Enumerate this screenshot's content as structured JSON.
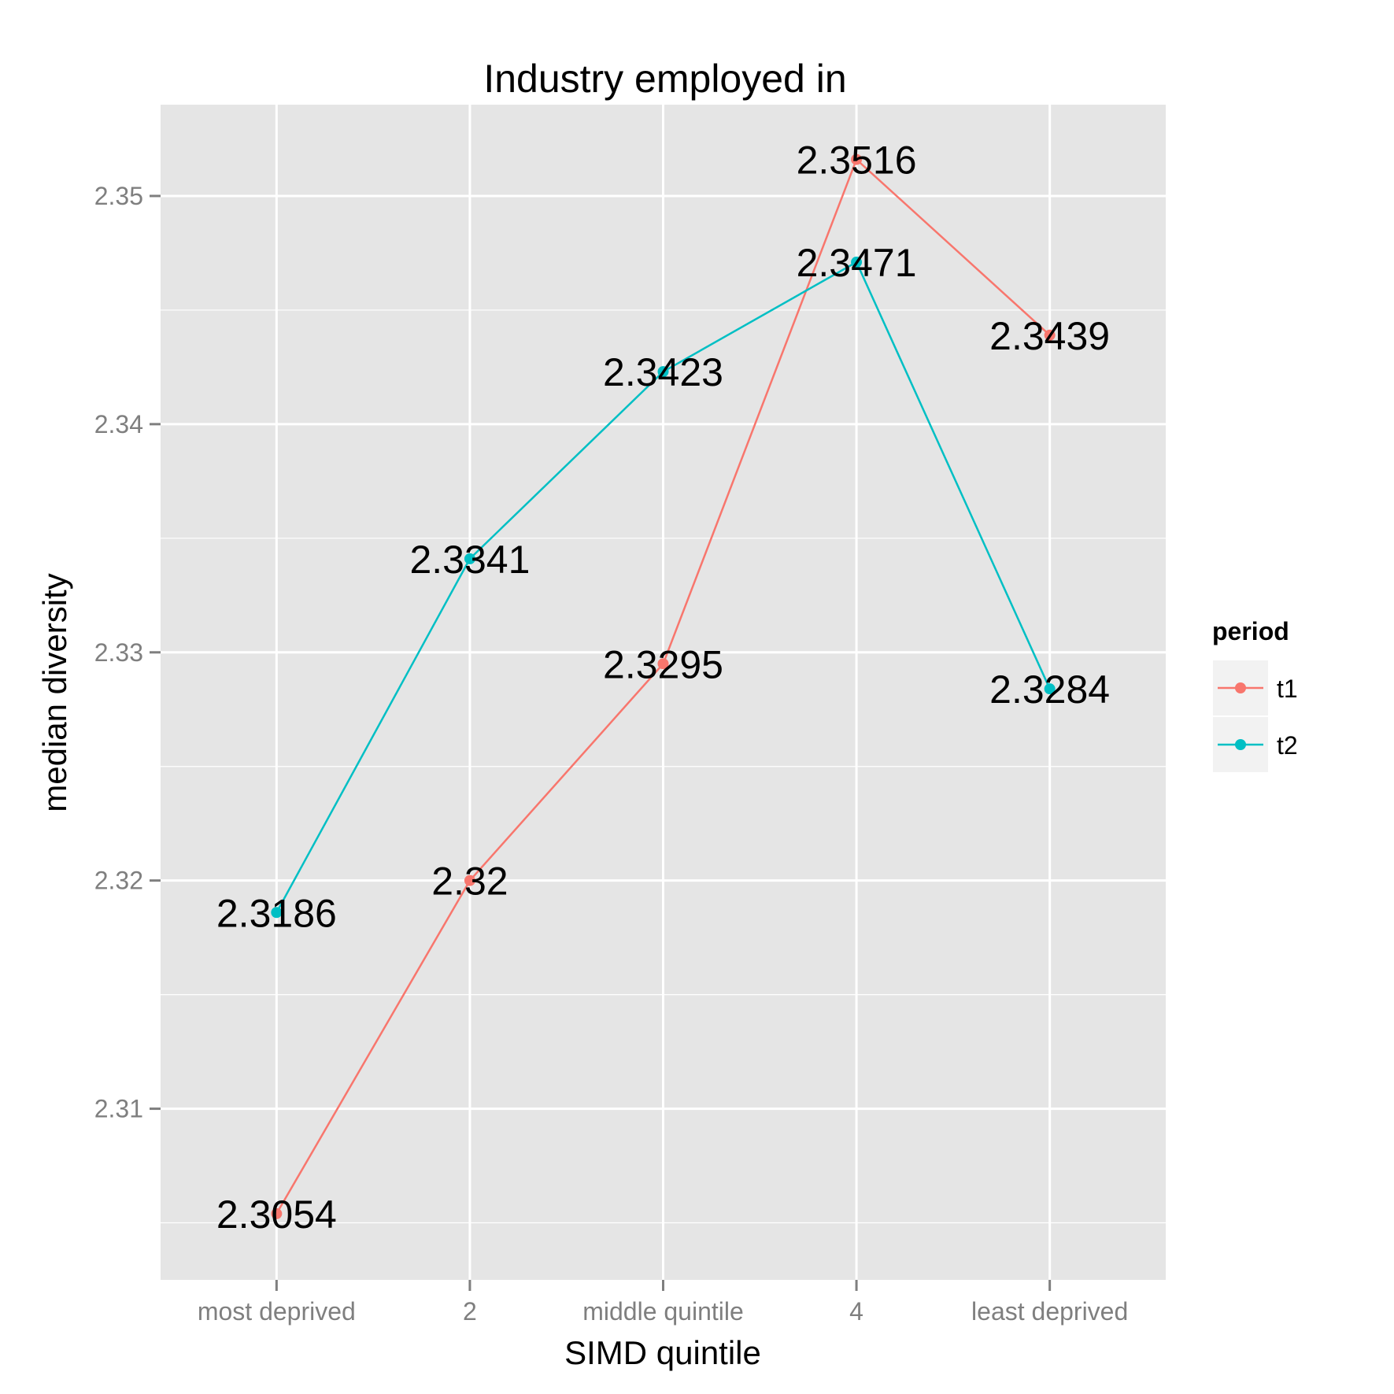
{
  "chart_data": {
    "type": "line",
    "title": "Industry employed in",
    "xlabel": "SIMD quintile",
    "ylabel": "median diversity",
    "categories": [
      "most deprived",
      "2",
      "middle quintile",
      "4",
      "least deprived"
    ],
    "ylim": [
      2.3025,
      2.354
    ],
    "y_ticks": [
      2.31,
      2.32,
      2.33,
      2.34,
      2.35
    ],
    "y_tick_labels": [
      "2.31",
      "2.32",
      "2.33",
      "2.34",
      "2.35"
    ],
    "grid": true,
    "legend": {
      "title": "period",
      "position": "right"
    },
    "series": [
      {
        "name": "t1",
        "color": "#F8766D",
        "values": [
          2.3054,
          2.32,
          2.3295,
          2.3516,
          2.3439
        ],
        "labels": [
          "2.3054",
          "2.32",
          "2.3295",
          "2.3516",
          "2.3439"
        ]
      },
      {
        "name": "t2",
        "color": "#00BFC4",
        "values": [
          2.3186,
          2.3341,
          2.3423,
          2.3471,
          2.3284
        ],
        "labels": [
          "2.3186",
          "2.3341",
          "2.3423",
          "2.3471",
          "2.3284"
        ]
      }
    ],
    "panel_color": "#E5E5E5",
    "grid_color": "#FFFFFF"
  }
}
